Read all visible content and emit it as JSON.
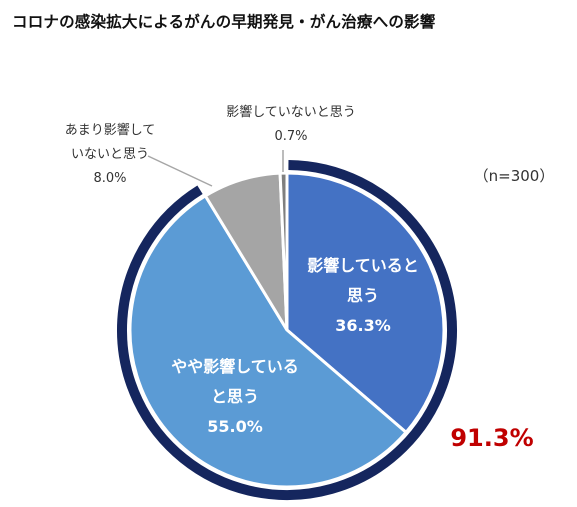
{
  "title": "コロナの感染拡大によるがんの早期発見・がん治療への影響",
  "n_label": "（n=300）",
  "total_label": "91.3%",
  "colors": {
    "ring": "#15265e",
    "total": "#c00000",
    "leader": "#a6a6a6"
  },
  "chart_data": {
    "type": "pie",
    "title": "コロナの感染拡大によるがんの早期発見・がん治療への影響",
    "sample_size": "n=300",
    "highlighted_total": {
      "value": 91.3,
      "label": "91.3%",
      "covers": [
        "影響していると思う",
        "やや影響していると思う"
      ]
    },
    "slices": [
      {
        "lines": [
          "影響していると",
          "思う"
        ],
        "value": 36.3,
        "value_label": "36.3%",
        "color": "#4472c4"
      },
      {
        "lines": [
          "やや影響している",
          "と思う"
        ],
        "value": 55.0,
        "value_label": "55.0%",
        "color": "#5b9bd5"
      },
      {
        "lines": [
          "あまり影響して",
          "いないと思う"
        ],
        "value": 8.0,
        "value_label": "8.0%",
        "color": "#a5a5a5"
      },
      {
        "lines": [
          "影響していないと思う"
        ],
        "value": 0.7,
        "value_label": "0.7%",
        "color": "#7f7f7f"
      }
    ]
  }
}
